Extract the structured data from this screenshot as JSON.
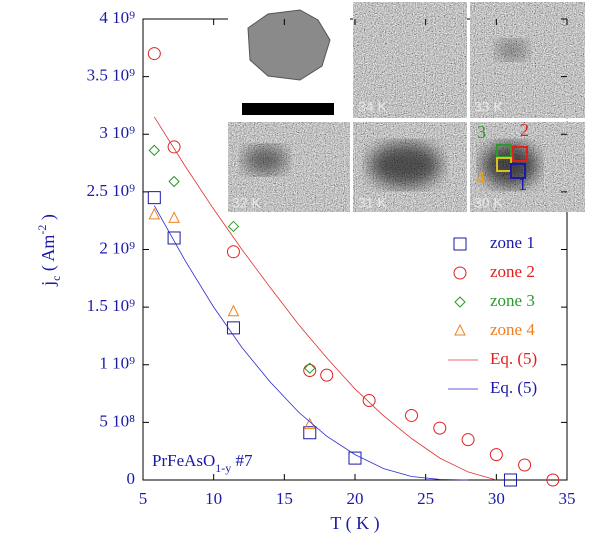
{
  "chart_data": {
    "type": "scatter",
    "xlabel": "T ( K )",
    "ylabel": [
      "j",
      "c",
      " ( Am",
      "-2",
      " )"
    ],
    "annotation": [
      "PrFeAsO",
      "1-y",
      " #7"
    ],
    "inset_labels": [
      "34 K",
      "33 K",
      "32 K",
      "31 K",
      "30 K"
    ],
    "zone_labels": [
      "1",
      "2",
      "3",
      "4"
    ],
    "xlim": [
      5,
      35
    ],
    "xticks": [
      5,
      10,
      15,
      20,
      25,
      30,
      35
    ],
    "ylim": [
      0,
      4000000000
    ],
    "yticks": [
      {
        "value": 0,
        "label": "0"
      },
      {
        "value": 500000000,
        "label": "5 10⁸"
      },
      {
        "value": 1000000000,
        "label": "1 10⁹"
      },
      {
        "value": 1500000000,
        "label": "1.5 10⁹"
      },
      {
        "value": 2000000000,
        "label": "2 10⁹"
      },
      {
        "value": 2500000000,
        "label": "2.5 10⁹"
      },
      {
        "value": 3000000000,
        "label": "3 10⁹"
      },
      {
        "value": 3500000000,
        "label": "3.5 10⁹"
      },
      {
        "value": 4000000000,
        "label": "4 10⁹"
      }
    ],
    "legend": "right",
    "series": [
      {
        "name": "zone 1",
        "color": "#1a1aa6",
        "marker": "square",
        "x": [
          5.8,
          7.2,
          11.4,
          16.8,
          20,
          31
        ],
        "values": [
          2450000000,
          2100000000,
          1320000000,
          410000000,
          190000000,
          0
        ]
      },
      {
        "name": "zone 2",
        "color": "#e02020",
        "marker": "circle",
        "x": [
          5.8,
          7.2,
          11.4,
          16.8,
          18,
          21,
          24,
          26,
          28,
          30,
          32,
          34
        ],
        "values": [
          3700000000,
          2890000000,
          1980000000,
          950000000,
          910000000,
          690000000,
          560000000,
          450000000,
          350000000,
          220000000,
          130000000,
          0
        ]
      },
      {
        "name": "zone 3",
        "color": "#2a9a2a",
        "marker": "diamond",
        "x": [
          5.8,
          7.2,
          11.4,
          16.8
        ],
        "values": [
          2860000000,
          2590000000,
          2200000000,
          970000000
        ]
      },
      {
        "name": "zone 4",
        "color": "#f08020",
        "marker": "triangle",
        "x": [
          5.8,
          7.2,
          11.4,
          16.8
        ],
        "values": [
          2300000000,
          2270000000,
          1460000000,
          480000000
        ]
      },
      {
        "name": "Eq. (5)",
        "color": "#e03030",
        "marker": "line",
        "x": [
          5.8,
          8,
          10,
          12,
          14,
          16,
          18,
          20,
          22,
          24,
          26,
          28,
          30
        ],
        "values": [
          3150000000,
          2720000000,
          2350000000,
          2000000000,
          1670000000,
          1350000000,
          1060000000,
          790000000,
          560000000,
          360000000,
          190000000,
          70000000,
          0
        ]
      },
      {
        "name": "Eq. (5)",
        "color": "#2a2ad0",
        "marker": "line",
        "x": [
          5.8,
          8,
          10,
          12,
          14,
          16,
          18,
          20,
          22,
          24,
          26,
          28
        ],
        "values": [
          2380000000,
          1900000000,
          1500000000,
          1150000000,
          850000000,
          590000000,
          380000000,
          220000000,
          100000000,
          30000000,
          5000000,
          0
        ]
      }
    ]
  }
}
